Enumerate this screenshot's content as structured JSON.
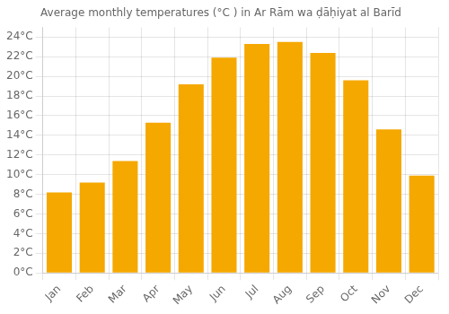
{
  "chart_data": {
    "type": "bar",
    "title": "Average monthly temperatures (°C ) in Ar Rām wa ḍāḥiyat al Barīd",
    "categories": [
      "Jan",
      "Feb",
      "Mar",
      "Apr",
      "May",
      "Jun",
      "Jul",
      "Aug",
      "Sep",
      "Oct",
      "Nov",
      "Dec"
    ],
    "values": [
      8.2,
      9.2,
      11.4,
      15.3,
      19.2,
      21.9,
      23.3,
      23.5,
      22.4,
      19.6,
      14.6,
      9.9
    ],
    "color": "#F5A800",
    "ylim": [
      0,
      25.0
    ],
    "yticks": [
      {
        "value": 0,
        "label": "0°C"
      },
      {
        "value": 2,
        "label": "2°C"
      },
      {
        "value": 4,
        "label": "4°C"
      },
      {
        "value": 6,
        "label": "6°C"
      },
      {
        "value": 8,
        "label": "8°C"
      },
      {
        "value": 10,
        "label": "10°C"
      },
      {
        "value": 12,
        "label": "12°C"
      },
      {
        "value": 14,
        "label": "14°C"
      },
      {
        "value": 16,
        "label": "16°C"
      },
      {
        "value": 18,
        "label": "18°C"
      },
      {
        "value": 20,
        "label": "20°C"
      },
      {
        "value": 22,
        "label": "22°C"
      },
      {
        "value": 24,
        "label": "24°C"
      }
    ],
    "grid": true
  }
}
